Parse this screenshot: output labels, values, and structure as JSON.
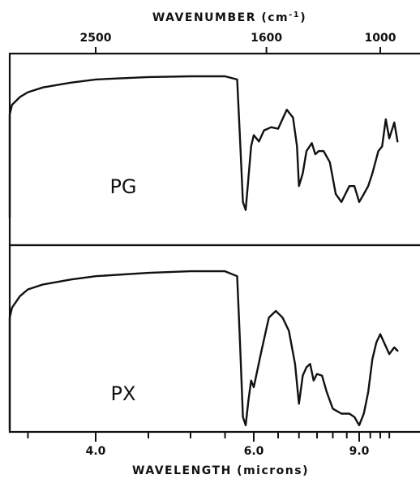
{
  "chart_data": {
    "type": "line",
    "top_axis": {
      "label": "WAVENUMBER (cm-1)",
      "ticks": [
        {
          "value": 2500,
          "label": "2500",
          "wavelength_microns": 4.0
        },
        {
          "value": 1600,
          "label": "1600",
          "wavelength_microns": 6.25
        },
        {
          "value": 1000,
          "label": "1000",
          "wavelength_microns": 10.0
        }
      ]
    },
    "bottom_axis": {
      "label": "WAVELENGTH (microns)",
      "scale": "reciprocal",
      "range": [
        2.9,
        11.0
      ],
      "ticks": [
        {
          "value": 4.0,
          "label": "4.0"
        },
        {
          "value": 6.0,
          "label": "6.0"
        },
        {
          "value": 9.0,
          "label": "9.0"
        }
      ],
      "minor_ticks": [
        3.0,
        3.5,
        4.0,
        4.5,
        5.0,
        5.5,
        6.0,
        6.5,
        7.0,
        7.5,
        8.0,
        8.5,
        9.0,
        9.5,
        10.0,
        10.5
      ]
    },
    "y_range": [
      0,
      1
    ],
    "series": [
      {
        "name": "PG",
        "x": [
          2.9,
          3.0,
          3.1,
          3.15,
          3.2,
          3.25,
          3.28,
          3.3,
          3.33,
          3.36,
          3.38,
          3.4,
          3.45,
          3.5,
          3.6,
          3.8,
          4.0,
          4.5,
          5.0,
          5.5,
          5.7,
          5.75,
          5.8,
          5.85,
          5.9,
          5.95,
          6.0,
          6.1,
          6.2,
          6.35,
          6.5,
          6.7,
          6.85,
          6.95,
          7.0,
          7.1,
          7.2,
          7.35,
          7.45,
          7.55,
          7.7,
          7.9,
          8.1,
          8.3,
          8.6,
          8.8,
          9.0,
          9.2,
          9.4,
          9.6,
          9.9,
          10.1,
          10.3,
          10.5,
          10.8,
          11.0
        ],
        "y": [
          0.52,
          0.6,
          0.67,
          0.55,
          0.2,
          0.1,
          0.14,
          0.28,
          0.1,
          0.35,
          0.75,
          0.81,
          0.86,
          0.89,
          0.92,
          0.95,
          0.97,
          0.985,
          0.99,
          0.99,
          0.97,
          0.6,
          0.2,
          0.15,
          0.35,
          0.55,
          0.62,
          0.58,
          0.65,
          0.67,
          0.66,
          0.78,
          0.73,
          0.55,
          0.3,
          0.38,
          0.52,
          0.57,
          0.5,
          0.52,
          0.52,
          0.45,
          0.25,
          0.2,
          0.3,
          0.3,
          0.2,
          0.25,
          0.3,
          0.38,
          0.52,
          0.55,
          0.72,
          0.6,
          0.7,
          0.58
        ]
      },
      {
        "name": "PX",
        "x": [
          2.9,
          3.0,
          3.1,
          3.15,
          3.2,
          3.25,
          3.28,
          3.3,
          3.33,
          3.36,
          3.38,
          3.4,
          3.45,
          3.5,
          3.6,
          3.8,
          4.0,
          4.5,
          5.0,
          5.5,
          5.7,
          5.75,
          5.8,
          5.85,
          5.9,
          5.95,
          6.0,
          6.15,
          6.3,
          6.45,
          6.6,
          6.75,
          6.9,
          7.0,
          7.1,
          7.2,
          7.3,
          7.4,
          7.5,
          7.65,
          7.8,
          8.0,
          8.3,
          8.6,
          8.8,
          9.0,
          9.2,
          9.4,
          9.6,
          9.8,
          10.0,
          10.2,
          10.5,
          10.8,
          11.0
        ],
        "y": [
          0.4,
          0.45,
          0.55,
          0.45,
          0.1,
          0.02,
          0.05,
          0.12,
          0.05,
          0.25,
          0.7,
          0.76,
          0.83,
          0.87,
          0.9,
          0.93,
          0.95,
          0.97,
          0.98,
          0.98,
          0.95,
          0.55,
          0.1,
          0.05,
          0.2,
          0.32,
          0.28,
          0.5,
          0.7,
          0.74,
          0.7,
          0.62,
          0.42,
          0.18,
          0.35,
          0.4,
          0.42,
          0.32,
          0.36,
          0.35,
          0.25,
          0.15,
          0.12,
          0.12,
          0.1,
          0.05,
          0.12,
          0.25,
          0.45,
          0.55,
          0.6,
          0.55,
          0.48,
          0.52,
          0.5
        ]
      }
    ]
  }
}
